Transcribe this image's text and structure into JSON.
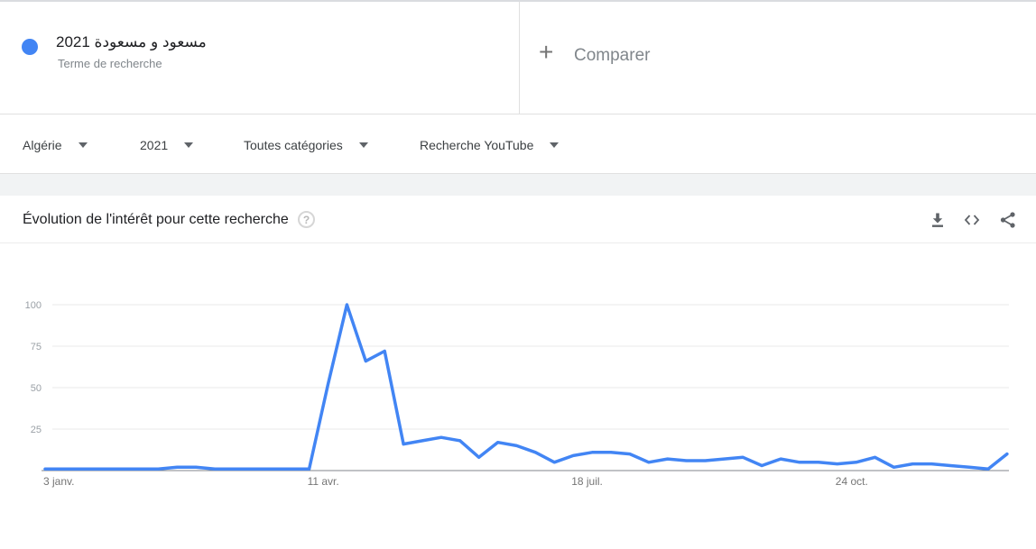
{
  "term_card": {
    "term": "مسعود و مسعودة 2021",
    "subtitle": "Terme de recherche",
    "dot_color": "#4285f4"
  },
  "compare": {
    "plus": "+",
    "label": "Comparer"
  },
  "filters": [
    {
      "label": "Algérie"
    },
    {
      "label": "2021"
    },
    {
      "label": "Toutes catégories"
    },
    {
      "label": "Recherche YouTube"
    }
  ],
  "chart_card": {
    "title": "Évolution de l'intérêt pour cette recherche",
    "help": "?"
  },
  "chart_data": {
    "type": "line",
    "title": "Évolution de l'intérêt pour cette recherche",
    "series_name": "مسعود و مسعودة 2021",
    "x_unit": "week",
    "x_tick_labels": [
      "3 janv.",
      "11 avr.",
      "18 juil.",
      "24 oct."
    ],
    "x_tick_indices": [
      0,
      14,
      28,
      42
    ],
    "y_ticks": [
      25,
      50,
      75,
      100
    ],
    "ylim": [
      0,
      100
    ],
    "grid": true,
    "line_color": "#4285f4",
    "values": [
      1,
      1,
      1,
      1,
      1,
      1,
      1,
      2,
      2,
      1,
      1,
      1,
      1,
      1,
      1,
      52,
      100,
      66,
      72,
      16,
      18,
      20,
      18,
      8,
      17,
      15,
      11,
      5,
      9,
      11,
      11,
      10,
      5,
      7,
      6,
      6,
      7,
      8,
      3,
      7,
      5,
      5,
      4,
      5,
      8,
      2,
      4,
      4,
      3,
      2,
      1,
      10
    ]
  },
  "colors": {
    "accent": "#4285f4",
    "divider": "#e0e0e0",
    "band": "#f1f3f4",
    "axis_label": "#9aa0a6",
    "x_label": "#757575",
    "gridline": "#e8e8e8",
    "baseline": "#80868b",
    "icon": "#5f6368"
  }
}
